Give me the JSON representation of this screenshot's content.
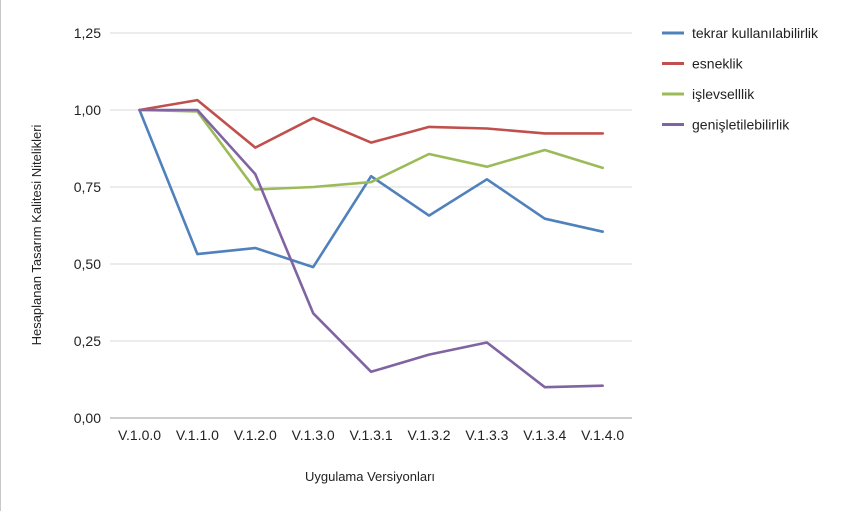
{
  "chart_data": {
    "type": "line",
    "title": "",
    "xlabel": "Uygulama Versiyonları",
    "ylabel": "Hesaplanan Tasarım Kalitesi Nitelikleri",
    "categories": [
      "V.1.0.0",
      "V.1.1.0",
      "V.1.2.0",
      "V.1.3.0",
      "V.1.3.1",
      "V.1.3.2",
      "V.1.3.3",
      "V.1.3.4",
      "V.1.4.0"
    ],
    "ylim": [
      0,
      1.25
    ],
    "yticks": [
      "0,00",
      "0,25",
      "0,50",
      "0,75",
      "1,00",
      "1,25"
    ],
    "grid": true,
    "legend_position": "right",
    "series": [
      {
        "name": "tekrar kullanılabilirlik",
        "color": "#4f81bd",
        "values": [
          1.0,
          0.532,
          0.552,
          0.49,
          0.785,
          0.657,
          0.775,
          0.647,
          0.605
        ]
      },
      {
        "name": "esneklik",
        "color": "#c0504d",
        "values": [
          1.0,
          1.032,
          0.878,
          0.974,
          0.894,
          0.945,
          0.94,
          0.924,
          0.924
        ]
      },
      {
        "name": "işlevselllik",
        "color": "#9bbb59",
        "values": [
          1.0,
          0.995,
          0.742,
          0.75,
          0.766,
          0.857,
          0.816,
          0.87,
          0.812
        ]
      },
      {
        "name": "genişletilebilirlik",
        "color": "#8064a2",
        "values": [
          1.0,
          1.0,
          0.792,
          0.34,
          0.15,
          0.206,
          0.245,
          0.1,
          0.105
        ]
      }
    ]
  }
}
